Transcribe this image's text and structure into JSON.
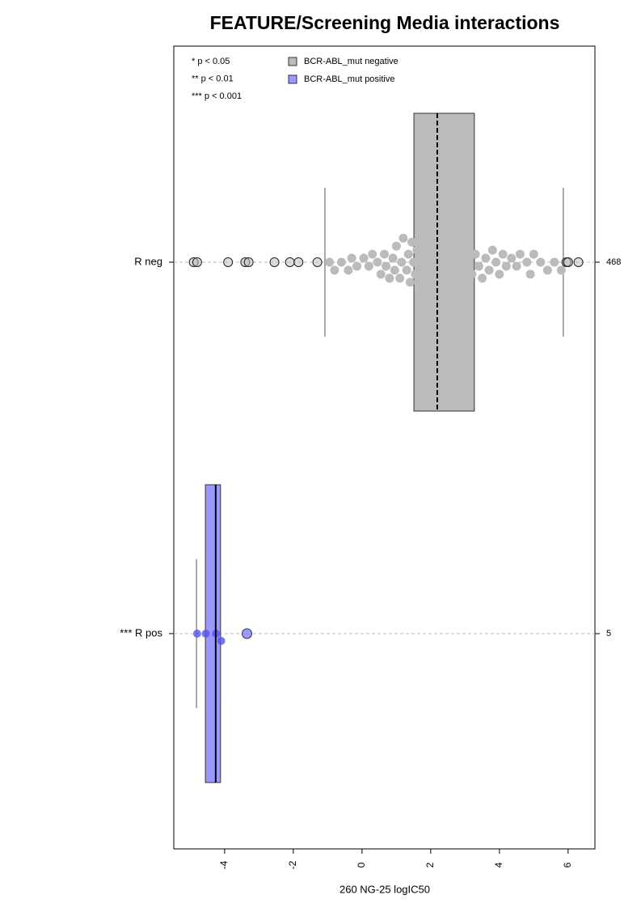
{
  "chart_data": {
    "type": "boxplot",
    "title": "FEATURE/Screening Media interactions",
    "x_label": "260 NG-25 logIC50",
    "xlim": [
      -5.48,
      6.78
    ],
    "xticks": [
      -4,
      -2,
      0,
      2,
      4,
      6
    ],
    "categories": [
      "R neg",
      "*** R pos"
    ],
    "counts": [
      468,
      5
    ],
    "notes": [
      "* p < 0.05",
      "** p < 0.01",
      "*** p < 0.001"
    ],
    "series": [
      {
        "name": "BCR-ABL_mut negative",
        "color": "#bbbbbb",
        "point_color": "#bbbbbb",
        "stats": {
          "whisker_low": -1.08,
          "q1": 1.51,
          "median": 2.19,
          "q3": 3.27,
          "whisker_high": 5.86
        },
        "points": [
          -0.95,
          -0.8,
          -0.6,
          -0.4,
          -0.3,
          -0.15,
          0.05,
          0.2,
          0.3,
          0.45,
          0.55,
          0.65,
          0.7,
          0.8,
          0.9,
          0.95,
          1.0,
          1.1,
          1.15,
          1.2,
          1.3,
          1.35,
          1.4,
          1.45,
          1.5,
          1.55,
          1.6,
          1.65,
          1.7,
          1.72,
          1.75,
          1.8,
          1.82,
          1.85,
          1.9,
          1.92,
          1.95,
          1.98,
          2.0,
          2.02,
          2.05,
          2.08,
          2.1,
          2.12,
          2.15,
          2.18,
          2.2,
          2.22,
          2.25,
          2.28,
          2.3,
          2.35,
          2.4,
          2.45,
          2.5,
          2.55,
          2.6,
          2.65,
          2.7,
          2.8,
          2.9,
          2.95,
          3.0,
          3.1,
          3.2,
          3.3,
          3.4,
          3.5,
          3.6,
          3.7,
          3.8,
          3.9,
          4.0,
          4.1,
          4.2,
          4.35,
          4.5,
          4.6,
          4.8,
          4.9,
          5.0,
          5.2,
          5.4,
          5.6,
          5.8
        ],
        "outliers": [
          -4.9,
          -4.8,
          -3.9,
          -3.4,
          -3.3,
          -2.55,
          -2.1,
          -1.85,
          -1.3,
          5.95,
          6.0,
          6.3
        ]
      },
      {
        "name": "BCR-ABL_mut positive",
        "color": "#9999ff",
        "point_color": "#5555ee",
        "stats": {
          "whisker_low": -4.82,
          "q1": -4.56,
          "median": -4.26,
          "q3": -4.12,
          "whisker_high": -4.12
        },
        "points": [
          -4.8,
          -4.55,
          -4.25,
          -4.1
        ],
        "outliers": [
          -3.35
        ]
      }
    ]
  }
}
